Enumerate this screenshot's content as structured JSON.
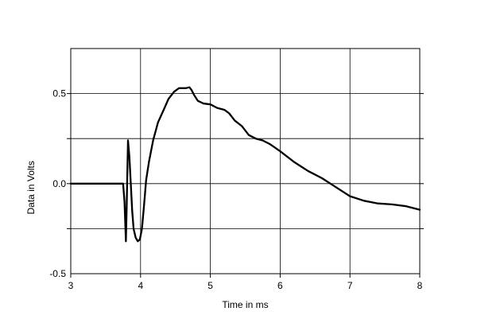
{
  "chart_data": {
    "type": "line",
    "title": "",
    "xlabel": "Time in ms",
    "ylabel": "Data in Volts",
    "xlim": [
      3,
      8
    ],
    "ylim": [
      -0.5,
      0.75
    ],
    "grid": true,
    "legend": "none",
    "line_color": "#000000",
    "x_ticks": [
      3,
      4,
      5,
      6,
      7,
      8
    ],
    "x_tick_labels": [
      "3",
      "4",
      "5",
      "6",
      "7",
      "8"
    ],
    "y_ticks": [
      -0.5,
      0.0,
      0.5
    ],
    "y_tick_labels": [
      "-0.5",
      "0.0",
      "0.5"
    ],
    "y_grid": [
      -0.25,
      0.0,
      0.25,
      0.5
    ],
    "series": [
      {
        "x": [
          3.0,
          3.5,
          3.75,
          3.77,
          3.79,
          3.8,
          3.82,
          3.84,
          3.86,
          3.88,
          3.9,
          3.93,
          3.96,
          3.99,
          4.02,
          4.05,
          4.08,
          4.12,
          4.18,
          4.25,
          4.32,
          4.4,
          4.48,
          4.55,
          4.6,
          4.65,
          4.7,
          4.73,
          4.77,
          4.82,
          4.9,
          5.0,
          5.1,
          5.2,
          5.27,
          5.35,
          5.45,
          5.55,
          5.65,
          5.75,
          5.85,
          6.0,
          6.2,
          6.4,
          6.6,
          6.8,
          7.0,
          7.2,
          7.4,
          7.6,
          7.8,
          8.0
        ],
        "y": [
          0.0,
          0.0,
          0.0,
          -0.1,
          -0.32,
          -0.15,
          0.24,
          0.15,
          0.0,
          -0.15,
          -0.25,
          -0.3,
          -0.32,
          -0.31,
          -0.25,
          -0.12,
          0.02,
          0.12,
          0.24,
          0.34,
          0.4,
          0.47,
          0.51,
          0.53,
          0.53,
          0.53,
          0.535,
          0.52,
          0.49,
          0.46,
          0.445,
          0.44,
          0.42,
          0.41,
          0.39,
          0.35,
          0.32,
          0.27,
          0.25,
          0.24,
          0.22,
          0.18,
          0.12,
          0.07,
          0.03,
          -0.02,
          -0.07,
          -0.095,
          -0.11,
          -0.115,
          -0.125,
          -0.145
        ]
      }
    ]
  }
}
